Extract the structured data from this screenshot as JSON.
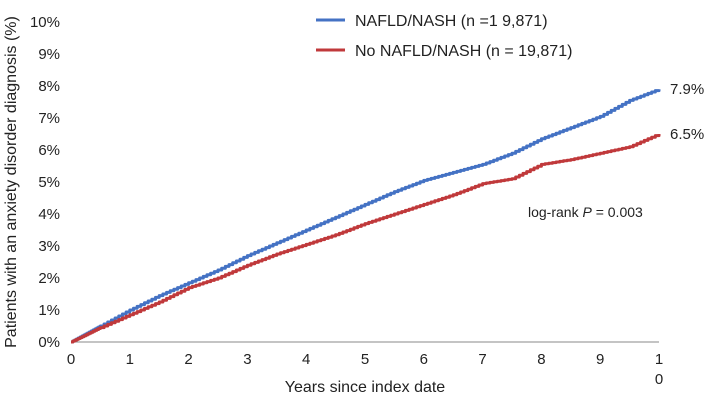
{
  "chart_data": {
    "type": "line",
    "title": "",
    "xlabel": "Years since index date",
    "ylabel": "Patients with an anxiety disorder diagnosis (%)",
    "xlim": [
      0,
      10
    ],
    "ylim": [
      0,
      10
    ],
    "x_ticks": [
      "0",
      "1",
      "2",
      "3",
      "4",
      "5",
      "6",
      "7",
      "8",
      "9",
      "1"
    ],
    "x_tick_continuation": "0",
    "y_ticks": [
      "0%",
      "1%",
      "2%",
      "3%",
      "4%",
      "5%",
      "6%",
      "7%",
      "8%",
      "9%",
      "10%"
    ],
    "grid": false,
    "legend_position": "top-right",
    "series": [
      {
        "name": "NAFLD/NASH (n =1 9,871)",
        "color": "#4472c4",
        "end_label": "7.9%",
        "x": [
          0,
          0.25,
          0.5,
          1,
          1.5,
          2,
          2.5,
          3,
          3.5,
          4,
          4.5,
          5,
          5.5,
          6,
          6.5,
          7,
          7.5,
          8,
          8.5,
          9,
          9.5,
          10
        ],
        "y": [
          0,
          0.25,
          0.5,
          1.0,
          1.45,
          1.85,
          2.25,
          2.7,
          3.1,
          3.5,
          3.9,
          4.3,
          4.7,
          5.05,
          5.3,
          5.55,
          5.9,
          6.35,
          6.7,
          7.05,
          7.55,
          7.9
        ]
      },
      {
        "name": "No NAFLD/NASH (n = 19,871)",
        "color": "#c0393b",
        "end_label": "6.5%",
        "x": [
          0,
          0.25,
          0.5,
          1,
          1.5,
          2,
          2.5,
          3,
          3.5,
          4,
          4.5,
          5,
          5.5,
          6,
          6.5,
          7,
          7.5,
          8,
          8.5,
          9,
          9.5,
          10
        ],
        "y": [
          0,
          0.22,
          0.45,
          0.85,
          1.25,
          1.7,
          2.0,
          2.4,
          2.75,
          3.05,
          3.35,
          3.7,
          4.0,
          4.3,
          4.6,
          4.95,
          5.1,
          5.55,
          5.7,
          5.9,
          6.1,
          6.5
        ]
      }
    ],
    "annotation": {
      "prefix": "log-rank ",
      "italic": "P",
      "suffix": " = 0.003"
    }
  }
}
